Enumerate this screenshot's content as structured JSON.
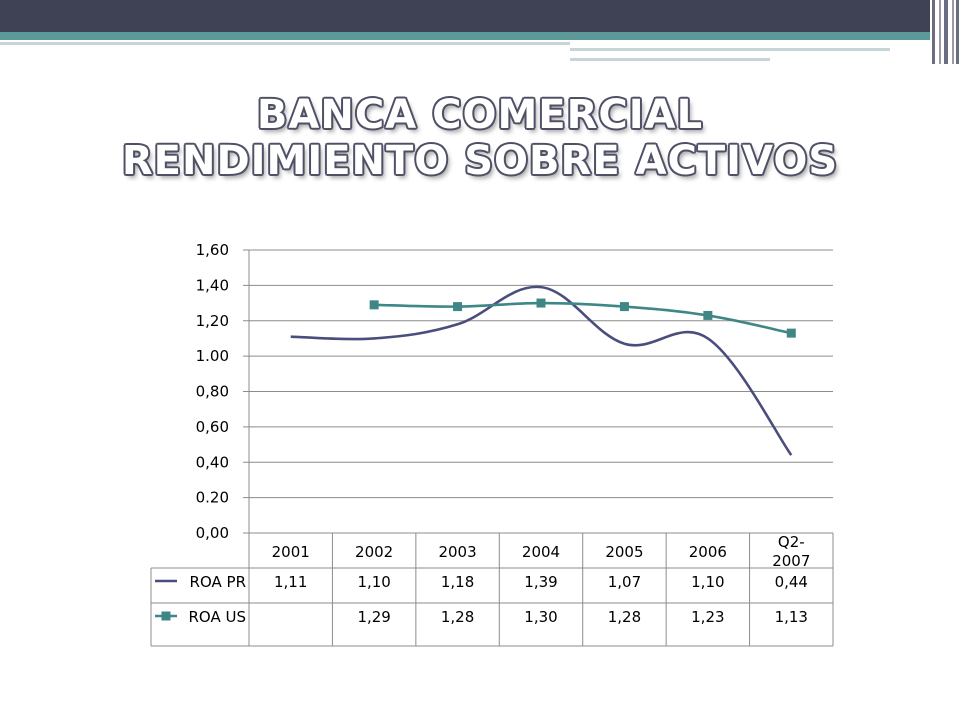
{
  "title": {
    "line1": "BANCA COMERCIAL",
    "line2": "RENDIMIENTO SOBRE ACTIVOS"
  },
  "colors": {
    "roa_pr": "#4b4e7d",
    "roa_us": "#3e8786",
    "header_dark": "#3f4254",
    "header_teal": "#5b9a98"
  },
  "chart_data": {
    "type": "line",
    "categories": [
      "2001",
      "2002",
      "2003",
      "2004",
      "2005",
      "2006",
      "Q2-2007"
    ],
    "category_labels": [
      [
        "2001"
      ],
      [
        "2002"
      ],
      [
        "2003"
      ],
      [
        "2004"
      ],
      [
        "2005"
      ],
      [
        "2006"
      ],
      [
        "Q2-",
        "2007"
      ]
    ],
    "y_ticks": [
      "0,00",
      "0.20",
      "0,40",
      "0,60",
      "0,80",
      "1.00",
      "1,20",
      "1,40",
      "1,60"
    ],
    "ylim": [
      0,
      1.6
    ],
    "grid": true,
    "legend": "data-table",
    "series": [
      {
        "name": "ROA PR",
        "values": [
          1.11,
          1.1,
          1.18,
          1.39,
          1.07,
          1.1,
          0.44
        ],
        "labels": [
          "1,11",
          "1,10",
          "1,18",
          "1,39",
          "1,07",
          "1,10",
          "0,44"
        ],
        "marker": "none",
        "smooth": true
      },
      {
        "name": "ROA US",
        "values": [
          null,
          1.29,
          1.28,
          1.3,
          1.28,
          1.23,
          1.13
        ],
        "labels": [
          "",
          "1,29",
          "1,28",
          "1,30",
          "1,28",
          "1,23",
          "1,13"
        ],
        "marker": "square",
        "smooth": true
      }
    ]
  }
}
